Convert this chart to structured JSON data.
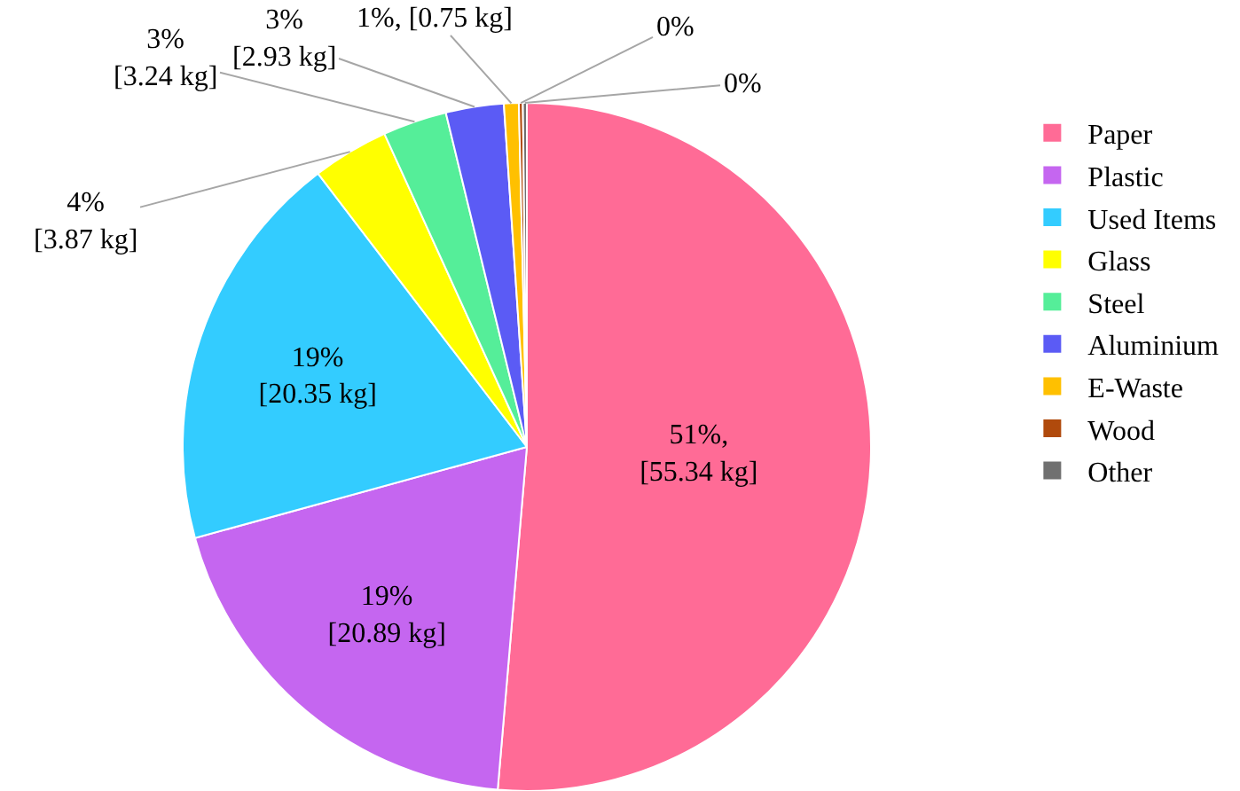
{
  "chart_data": {
    "type": "pie",
    "categories": [
      "Paper",
      "Plastic",
      "Used Items",
      "Glass",
      "Steel",
      "Aluminium",
      "E-Waste",
      "Wood",
      "Other"
    ],
    "values": [
      55.34,
      20.89,
      20.35,
      3.87,
      3.24,
      2.93,
      0.75,
      0.2,
      0.2
    ],
    "colors": [
      "#ff6b96",
      "#c566f0",
      "#33ccff",
      "#ffff00",
      "#55ee99",
      "#5b5bf5",
      "#ffc000",
      "#b04a0c",
      "#707070"
    ],
    "value_labels": [
      "51%,\n[55.34 kg]",
      "19%\n[20.89 kg]",
      "19%\n[20.35 kg]",
      "4%\n[3.87 kg]",
      "3%\n[3.24 kg]",
      "3%\n[2.93 kg]",
      "1%, [0.75 kg]",
      "0%",
      "0%"
    ],
    "legend": "right",
    "marker": "square"
  }
}
